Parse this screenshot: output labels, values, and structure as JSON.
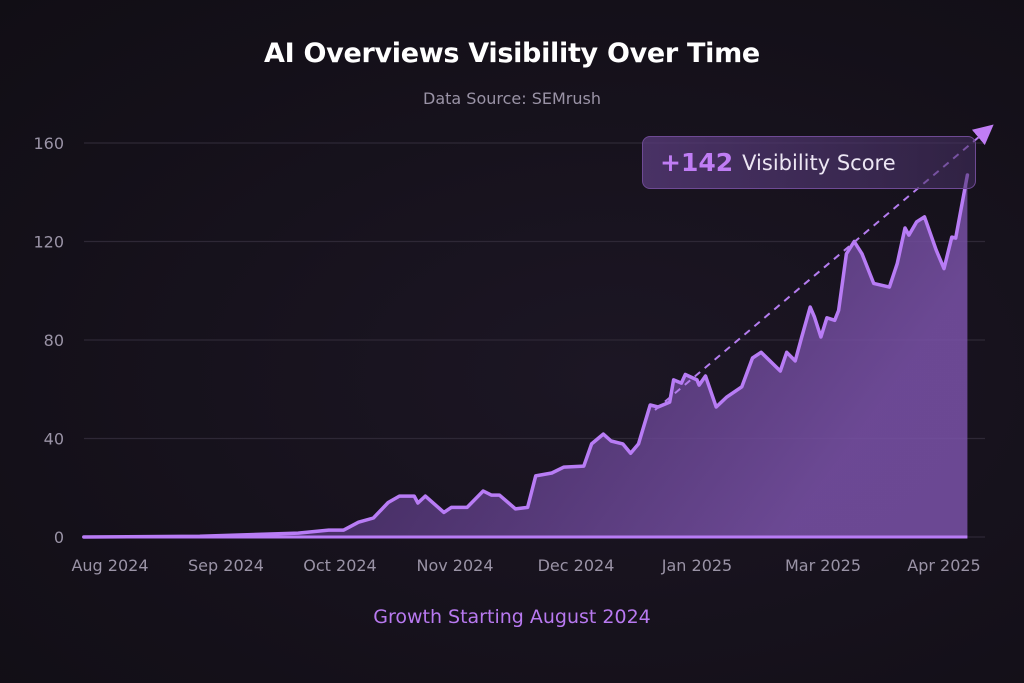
{
  "chart_data": {
    "type": "area",
    "title": "AI Overviews Visibility Over Time",
    "subtitle": "Data Source: SEMrush",
    "footer": "Growth Starting August 2024",
    "ylim": [
      0,
      160
    ],
    "yticks": [
      0,
      40,
      80,
      120,
      160
    ],
    "xticks": [
      {
        "label": "Aug 2024",
        "date": "2024-08-01"
      },
      {
        "label": "Sep 2024",
        "date": "2024-09-01"
      },
      {
        "label": "Oct 2024",
        "date": "2024-10-01"
      },
      {
        "label": "Nov 2024",
        "date": "2024-11-01"
      },
      {
        "label": "Dec 2024",
        "date": "2024-12-01"
      },
      {
        "label": "Jan 2025",
        "date": "2025-01-01"
      },
      {
        "label": "Mar 2025",
        "date": "2025-03-01"
      },
      {
        "label": "Apr 2025",
        "date": "2025-04-01"
      }
    ],
    "grid": true,
    "annotation": {
      "value": "+142",
      "label": "Visibility Score"
    },
    "trend_arrow": true,
    "colors": {
      "line": "#b87cf5",
      "fill": "#6a4594",
      "background": "#15111b",
      "accent_text": "#b879f0"
    },
    "points": [
      [
        "2024-07-25",
        0
      ],
      [
        "2024-08-25",
        0.3
      ],
      [
        "2024-09-20",
        1.6
      ],
      [
        "2024-09-28",
        2.8
      ],
      [
        "2024-10-02",
        2.8
      ],
      [
        "2024-10-06",
        6
      ],
      [
        "2024-10-10",
        7.7
      ],
      [
        "2024-10-14",
        14
      ],
      [
        "2024-10-17",
        16.6
      ],
      [
        "2024-10-21",
        16.6
      ],
      [
        "2024-10-22",
        13.8
      ],
      [
        "2024-10-24",
        16.6
      ],
      [
        "2024-10-29",
        10
      ],
      [
        "2024-10-31",
        12
      ],
      [
        "2024-11-04",
        12
      ],
      [
        "2024-11-08",
        18.7
      ],
      [
        "2024-11-10",
        17
      ],
      [
        "2024-11-12",
        17
      ],
      [
        "2024-11-16",
        11.4
      ],
      [
        "2024-11-19",
        12
      ],
      [
        "2024-11-21",
        24.8
      ],
      [
        "2024-11-25",
        26
      ],
      [
        "2024-11-28",
        28.4
      ],
      [
        "2024-12-03",
        28.8
      ],
      [
        "2024-12-05",
        37.8
      ],
      [
        "2024-12-08",
        41.8
      ],
      [
        "2024-12-10",
        39
      ],
      [
        "2024-12-13",
        37.8
      ],
      [
        "2024-12-15",
        34
      ],
      [
        "2024-12-17",
        37.8
      ],
      [
        "2024-12-20",
        53.6
      ],
      [
        "2024-12-22",
        52.8
      ],
      [
        "2024-12-25",
        54.8
      ],
      [
        "2024-12-26",
        63.8
      ],
      [
        "2024-12-28",
        62.5
      ],
      [
        "2024-12-29",
        66
      ],
      [
        "2025-01-01",
        63.8
      ],
      [
        "2025-01-02",
        61.7
      ],
      [
        "2025-01-05",
        65.4
      ],
      [
        "2025-01-10",
        52.8
      ],
      [
        "2025-01-15",
        56.9
      ],
      [
        "2025-01-22",
        61
      ],
      [
        "2025-01-27",
        72.7
      ],
      [
        "2025-01-31",
        75
      ],
      [
        "2025-02-09",
        67.4
      ],
      [
        "2025-02-12",
        75
      ],
      [
        "2025-02-16",
        71.5
      ],
      [
        "2025-02-19",
        81
      ],
      [
        "2025-02-23",
        93.4
      ],
      [
        "2025-02-25",
        89.3
      ],
      [
        "2025-02-28",
        81.2
      ],
      [
        "2025-03-02",
        89
      ],
      [
        "2025-03-04",
        88
      ],
      [
        "2025-03-05",
        92
      ],
      [
        "2025-03-07",
        115
      ],
      [
        "2025-03-09",
        120
      ],
      [
        "2025-03-11",
        115
      ],
      [
        "2025-03-14",
        103
      ],
      [
        "2025-03-18",
        101.5
      ],
      [
        "2025-03-20",
        111
      ],
      [
        "2025-03-22",
        125.5
      ],
      [
        "2025-03-23",
        122.6
      ],
      [
        "2025-03-25",
        128
      ],
      [
        "2025-03-27",
        130
      ],
      [
        "2025-03-30",
        116.5
      ],
      [
        "2025-04-01",
        109
      ],
      [
        "2025-04-03",
        121.8
      ],
      [
        "2025-04-04",
        121.4
      ],
      [
        "2025-04-05",
        130
      ],
      [
        "2025-04-07",
        147
      ]
    ]
  }
}
